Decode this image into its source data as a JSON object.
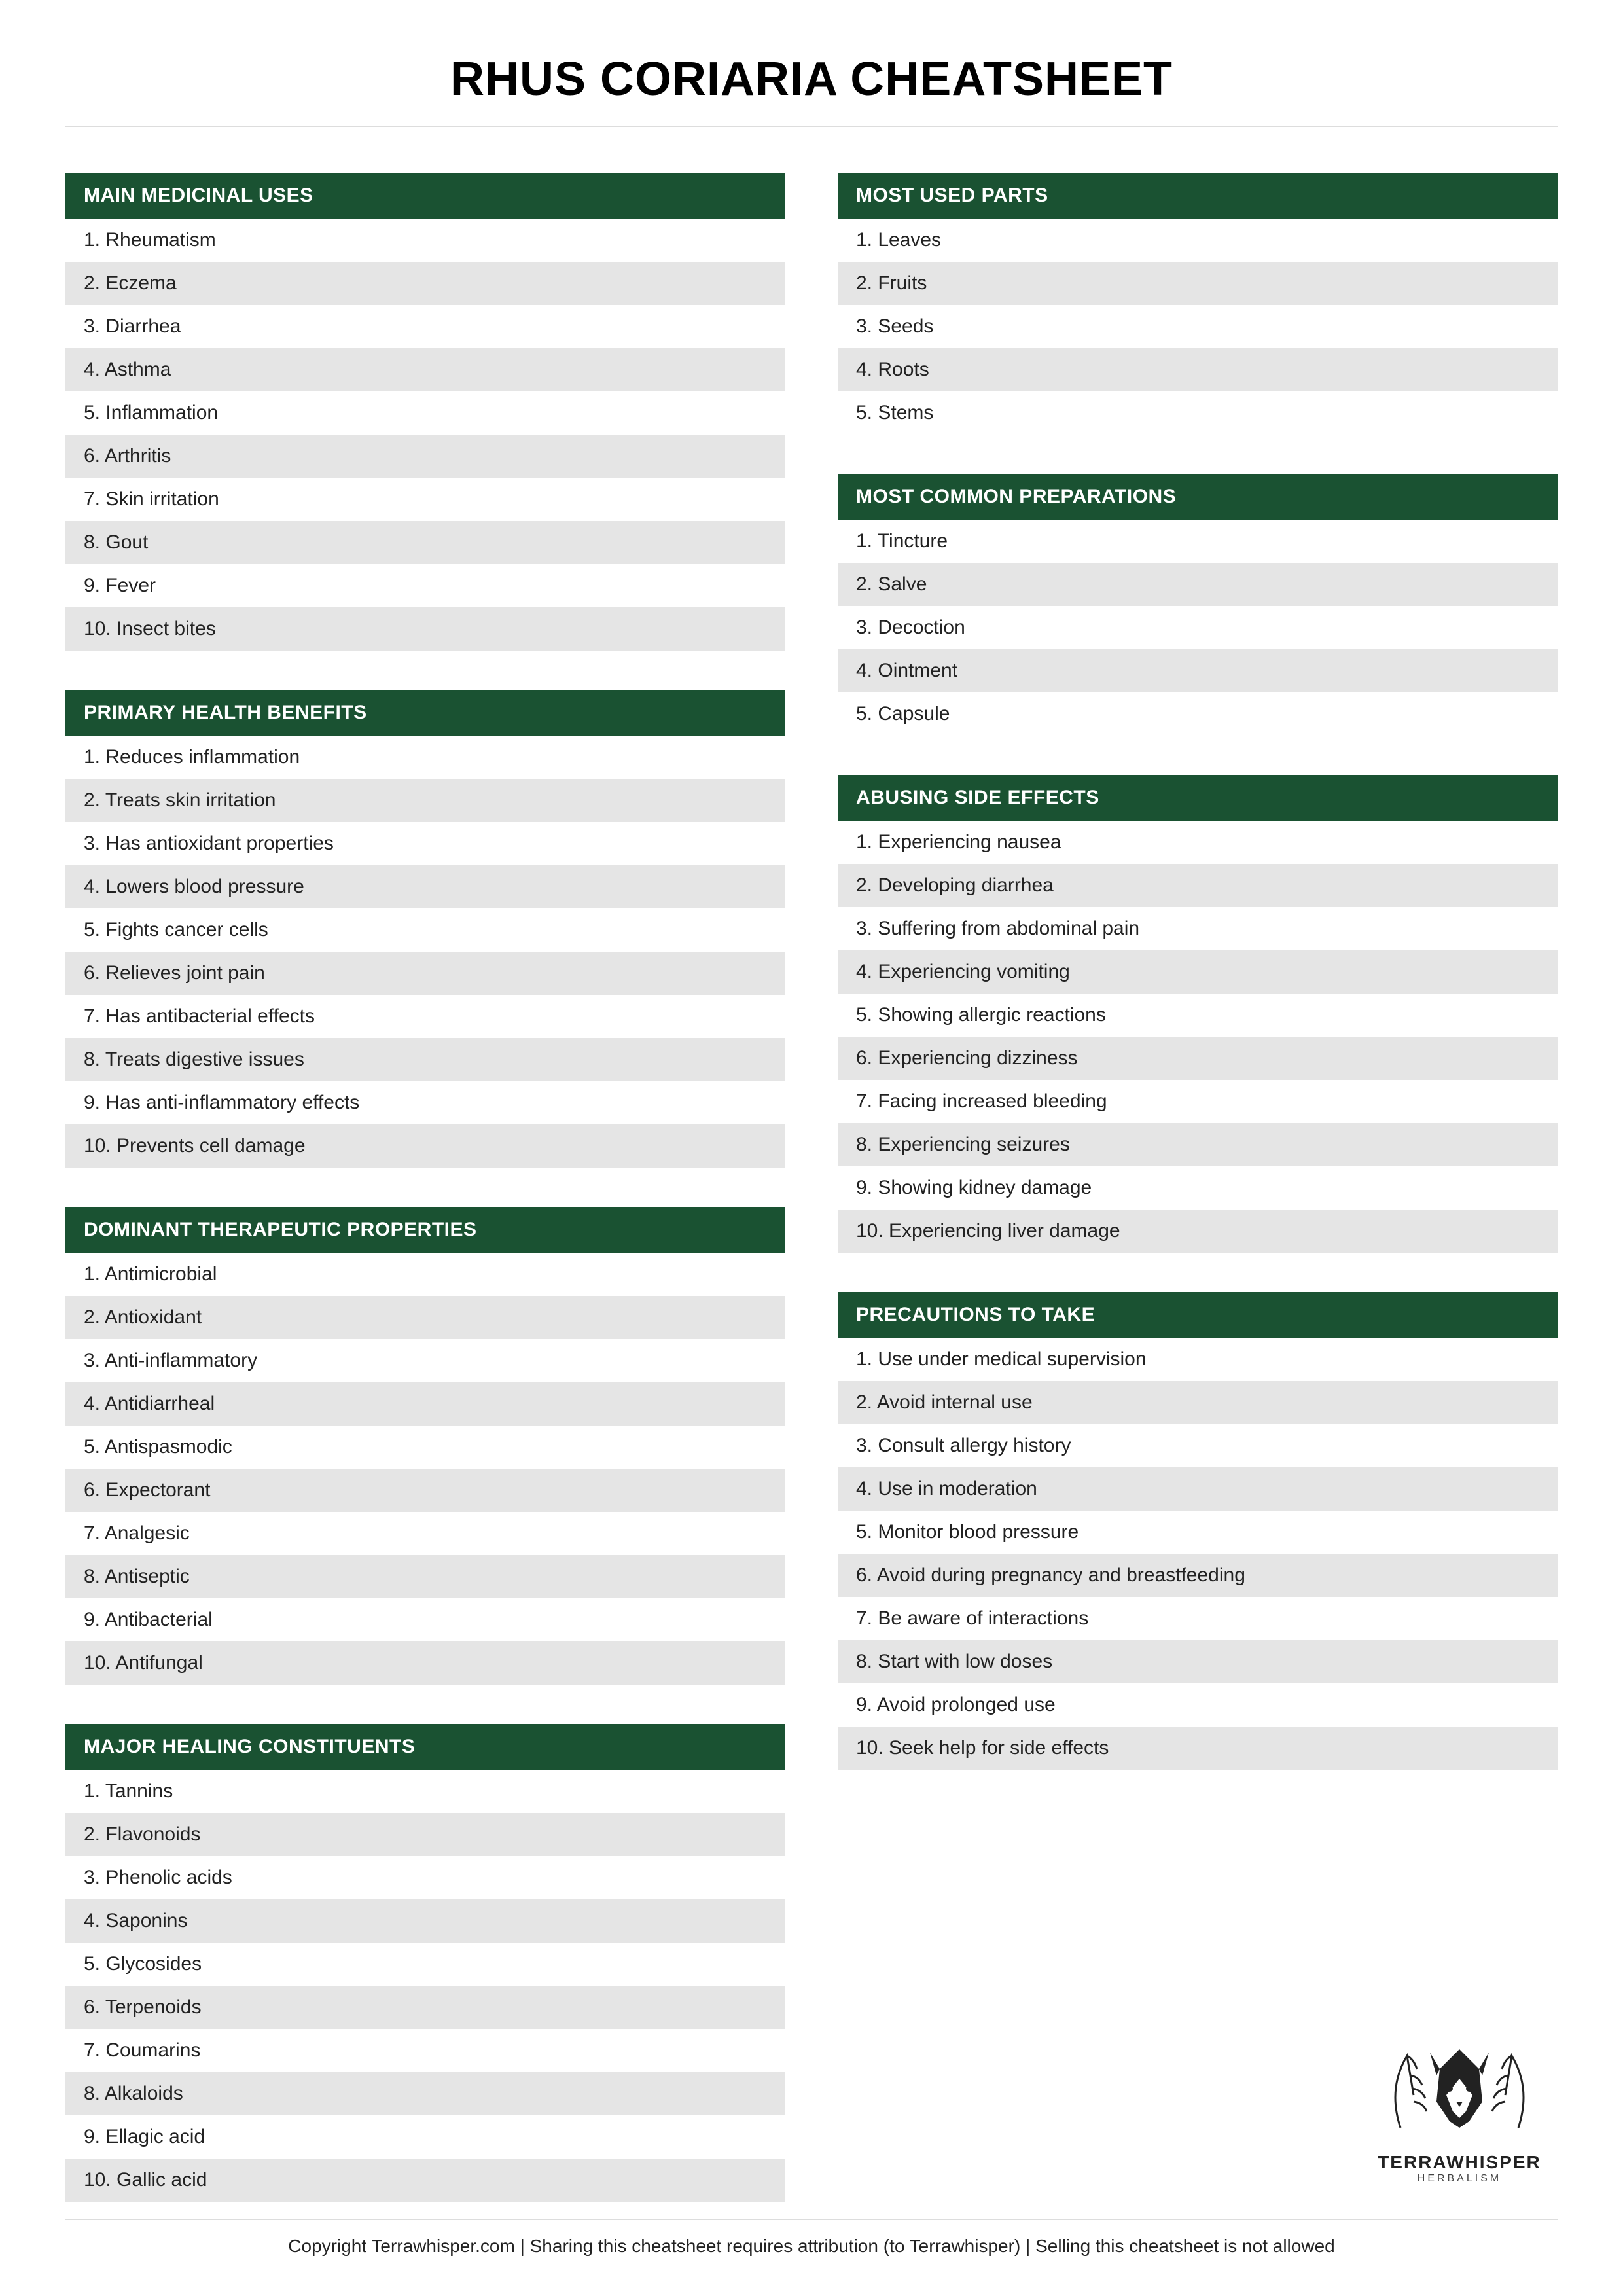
{
  "title": "RHUS CORIARIA CHEATSHEET",
  "colors": {
    "header_bg": "#1a5232",
    "header_text": "#ffffff",
    "row_even_bg": "#e5e5e5",
    "row_odd_bg": "#ffffff",
    "rule": "#dddddd"
  },
  "left_sections": [
    {
      "header": "MAIN MEDICINAL USES",
      "items": [
        "1. Rheumatism",
        "2. Eczema",
        "3. Diarrhea",
        "4. Asthma",
        "5. Inflammation",
        "6. Arthritis",
        "7. Skin irritation",
        "8. Gout",
        "9. Fever",
        "10. Insect bites"
      ]
    },
    {
      "header": "PRIMARY HEALTH BENEFITS",
      "items": [
        "1. Reduces inflammation",
        "2. Treats skin irritation",
        "3. Has antioxidant properties",
        "4. Lowers blood pressure",
        "5. Fights cancer cells",
        "6. Relieves joint pain",
        "7. Has antibacterial effects",
        "8. Treats digestive issues",
        "9. Has anti-inflammatory effects",
        "10. Prevents cell damage"
      ]
    },
    {
      "header": "DOMINANT THERAPEUTIC PROPERTIES",
      "items": [
        "1. Antimicrobial",
        "2. Antioxidant",
        "3. Anti-inflammatory",
        "4. Antidiarrheal",
        "5. Antispasmodic",
        "6. Expectorant",
        "7. Analgesic",
        "8. Antiseptic",
        "9. Antibacterial",
        "10. Antifungal"
      ]
    },
    {
      "header": "MAJOR HEALING CONSTITUENTS",
      "items": [
        "1. Tannins",
        "2. Flavonoids",
        "3. Phenolic acids",
        "4. Saponins",
        "5. Glycosides",
        "6. Terpenoids",
        "7. Coumarins",
        "8. Alkaloids",
        "9. Ellagic acid",
        "10. Gallic acid"
      ]
    }
  ],
  "right_sections": [
    {
      "header": "MOST USED PARTS",
      "items": [
        "1. Leaves",
        "2. Fruits",
        "3. Seeds",
        "4. Roots",
        "5. Stems"
      ]
    },
    {
      "header": "MOST COMMON PREPARATIONS",
      "items": [
        "1. Tincture",
        "2. Salve",
        "3. Decoction",
        "4. Ointment",
        "5. Capsule"
      ]
    },
    {
      "header": "ABUSING SIDE EFFECTS",
      "items": [
        "1. Experiencing nausea",
        "2. Developing diarrhea",
        "3. Suffering from abdominal pain",
        "4. Experiencing vomiting",
        "5. Showing allergic reactions",
        "6. Experiencing dizziness",
        "7. Facing increased bleeding",
        "8. Experiencing seizures",
        "9. Showing kidney damage",
        "10. Experiencing liver damage"
      ]
    },
    {
      "header": "PRECAUTIONS TO TAKE",
      "items": [
        "1. Use under medical supervision",
        "2. Avoid internal use",
        "3. Consult allergy history",
        "4. Use in moderation",
        "5. Monitor blood pressure",
        "6. Avoid during pregnancy and breastfeeding",
        "7. Be aware of interactions",
        "8. Start with low doses",
        "9. Avoid prolonged use",
        "10. Seek help for side effects"
      ]
    }
  ],
  "logo": {
    "brand": "TERRAWHISPER",
    "tagline": "HERBALISM"
  },
  "footer": "Copyright Terrawhisper.com | Sharing this cheatsheet requires attribution (to Terrawhisper) | Selling this cheatsheet is not allowed"
}
